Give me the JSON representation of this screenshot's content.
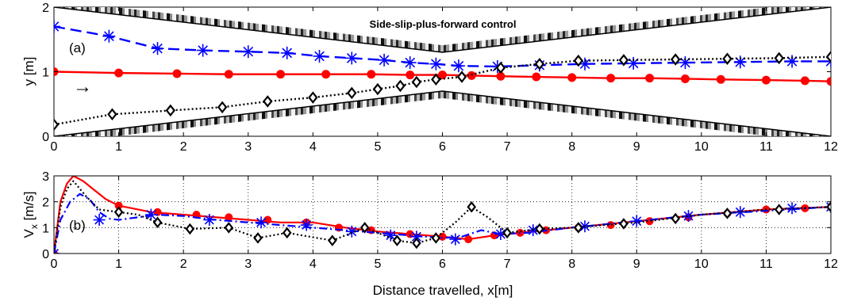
{
  "figure": {
    "panel_a_title": "Side-slip-plus-forward control",
    "panel_a_tag": "(a)",
    "panel_b_tag": "(b)",
    "direction_arrow": "→",
    "xlabel": "Distance travelled, x[m]"
  },
  "chart_data": [
    {
      "type": "line",
      "panel": "a",
      "title": "Side-slip-plus-forward control",
      "ylabel": "y [m]",
      "xlim": [
        0,
        12
      ],
      "ylim": [
        0,
        2
      ],
      "x_ticks": [
        0,
        1,
        2,
        3,
        4,
        5,
        6,
        7,
        8,
        9,
        10,
        11,
        12
      ],
      "y_ticks": [
        0,
        1,
        2
      ],
      "grid": false,
      "corridor_walls": {
        "upper": {
          "x": [
            0,
            6,
            12
          ],
          "y": [
            2.0,
            1.3,
            2.0
          ]
        },
        "lower": {
          "x": [
            0,
            6,
            12
          ],
          "y": [
            0.0,
            0.7,
            0.0
          ]
        }
      },
      "series": [
        {
          "color": "#ff0000",
          "line": "solid",
          "marker": "circle",
          "x": [
            0,
            1,
            1.9,
            2.7,
            3.5,
            4.2,
            4.9,
            5.5,
            6,
            6.45,
            6.9,
            7.45,
            8,
            8.6,
            9.2,
            9.75,
            10.3,
            11,
            11.6,
            12
          ],
          "y": [
            1.0,
            0.98,
            0.97,
            0.96,
            0.96,
            0.96,
            0.96,
            0.95,
            0.95,
            0.94,
            0.93,
            0.92,
            0.91,
            0.9,
            0.9,
            0.89,
            0.88,
            0.87,
            0.86,
            0.85
          ]
        },
        {
          "color": "#0000ff",
          "line": "dashed",
          "marker": "asterisk",
          "x": [
            0,
            0.85,
            1.6,
            2.3,
            3.0,
            3.6,
            4.1,
            4.6,
            5.1,
            5.5,
            5.9,
            6.25,
            6.85,
            7.5,
            8.2,
            8.95,
            9.75,
            10.6,
            11.4,
            12
          ],
          "y": [
            1.7,
            1.55,
            1.36,
            1.33,
            1.31,
            1.29,
            1.24,
            1.21,
            1.18,
            1.14,
            1.12,
            1.09,
            1.08,
            1.1,
            1.12,
            1.13,
            1.14,
            1.15,
            1.16,
            1.16
          ]
        },
        {
          "color": "#000000",
          "line": "dotted",
          "marker": "diamond",
          "x": [
            0,
            0.9,
            1.8,
            2.6,
            3.3,
            4.0,
            4.6,
            5.0,
            5.35,
            5.6,
            5.9,
            6.3,
            6.9,
            7.5,
            8.1,
            8.8,
            9.6,
            10.4,
            11.2,
            12
          ],
          "y": [
            0.18,
            0.34,
            0.4,
            0.45,
            0.54,
            0.6,
            0.67,
            0.73,
            0.78,
            0.84,
            0.88,
            0.92,
            1.06,
            1.12,
            1.17,
            1.18,
            1.19,
            1.2,
            1.21,
            1.23
          ]
        }
      ]
    },
    {
      "type": "line",
      "panel": "b",
      "ylabel": "Vx [m/s]",
      "xlabel": "Distance travelled, x[m]",
      "xlim": [
        0,
        12
      ],
      "ylim": [
        0,
        3
      ],
      "x_ticks": [
        0,
        1,
        2,
        3,
        4,
        5,
        6,
        7,
        8,
        9,
        10,
        11,
        12
      ],
      "y_ticks": [
        0,
        1,
        2,
        3
      ],
      "grid": true,
      "series": [
        {
          "color": "#ff0000",
          "line": "solid",
          "marker": "circle",
          "curve_x": [
            0,
            0.1,
            0.2,
            0.3,
            0.45,
            0.6,
            0.8,
            1.0,
            1.5,
            2.0,
            2.5,
            3.0,
            3.5,
            4.0,
            4.5,
            5.0,
            5.5,
            6.0,
            6.4,
            6.8,
            7.2,
            8.0,
            9.0,
            10.0,
            11.0,
            12.0
          ],
          "curve_y": [
            0.0,
            2.0,
            2.7,
            3.0,
            2.8,
            2.5,
            2.1,
            1.85,
            1.6,
            1.5,
            1.4,
            1.3,
            1.2,
            1.2,
            1.0,
            0.85,
            0.75,
            0.65,
            0.55,
            0.7,
            0.8,
            1.0,
            1.25,
            1.5,
            1.7,
            1.8
          ],
          "x": [
            0,
            1.0,
            1.6,
            2.2,
            2.7,
            3.3,
            3.9,
            4.4,
            4.9,
            5.5,
            6.0,
            6.4,
            6.8,
            7.2,
            7.6,
            8.1,
            8.6,
            9.2,
            9.8,
            10.4,
            11.0,
            11.6,
            12
          ],
          "y": [
            0.0,
            1.85,
            1.6,
            1.5,
            1.4,
            1.3,
            1.2,
            1.0,
            0.9,
            0.75,
            0.65,
            0.55,
            0.7,
            0.8,
            0.9,
            1.0,
            1.1,
            1.25,
            1.4,
            1.55,
            1.7,
            1.75,
            1.8
          ]
        },
        {
          "color": "#0000ff",
          "line": "dashdot",
          "marker": "asterisk",
          "curve_x": [
            0,
            0.1,
            0.25,
            0.4,
            0.55,
            0.7,
            0.85,
            1.0,
            1.3,
            1.6,
            2.0,
            2.5,
            3.0,
            3.5,
            4.0,
            4.5,
            5.0,
            5.5,
            6.0,
            6.3,
            6.6,
            6.9,
            7.3,
            8.0,
            9.0,
            10.0,
            11.0,
            12.0
          ],
          "curve_y": [
            0.0,
            1.3,
            2.0,
            2.3,
            2.1,
            1.6,
            1.35,
            1.3,
            1.4,
            1.5,
            1.45,
            1.3,
            1.2,
            1.1,
            1.0,
            0.9,
            0.8,
            0.7,
            0.6,
            0.65,
            0.9,
            0.75,
            0.8,
            1.0,
            1.25,
            1.5,
            1.65,
            1.8
          ],
          "x": [
            0,
            0.7,
            1.5,
            2.4,
            3.2,
            3.9,
            4.6,
            5.2,
            5.6,
            6.2,
            6.9,
            7.4,
            8.2,
            9.0,
            9.8,
            10.6,
            11.4,
            12
          ],
          "y": [
            0.0,
            1.3,
            1.5,
            1.3,
            1.2,
            1.1,
            0.85,
            0.7,
            0.65,
            0.55,
            0.75,
            0.9,
            1.05,
            1.25,
            1.45,
            1.6,
            1.75,
            1.8
          ]
        },
        {
          "color": "#000000",
          "line": "dotted",
          "marker": "diamond",
          "curve_x": [
            0,
            0.1,
            0.2,
            0.3,
            0.5,
            0.7,
            1.0,
            1.3,
            1.6,
            2.1,
            2.7,
            3.15,
            3.6,
            4.3,
            4.8,
            5.3,
            5.6,
            5.9,
            6.2,
            6.45,
            6.7,
            7.0,
            7.5,
            8.0,
            9.0,
            10.0,
            11.0,
            12.0
          ],
          "curve_y": [
            0.0,
            1.8,
            2.5,
            2.8,
            2.2,
            1.7,
            1.6,
            1.5,
            1.2,
            0.95,
            1.0,
            0.6,
            0.8,
            0.5,
            1.0,
            0.5,
            0.4,
            0.6,
            1.2,
            1.8,
            1.4,
            0.8,
            0.95,
            1.0,
            1.2,
            1.5,
            1.7,
            1.8
          ],
          "x": [
            1.0,
            1.6,
            2.1,
            2.7,
            3.15,
            3.6,
            4.3,
            4.8,
            5.3,
            5.6,
            5.9,
            6.45,
            7.0,
            7.5,
            8.1,
            8.8,
            9.6,
            10.4,
            11.2,
            12
          ],
          "y": [
            1.6,
            1.2,
            0.95,
            1.0,
            0.6,
            0.8,
            0.5,
            1.0,
            0.5,
            0.4,
            0.6,
            1.8,
            0.8,
            0.95,
            1.0,
            1.15,
            1.35,
            1.55,
            1.7,
            1.8
          ]
        }
      ]
    }
  ]
}
